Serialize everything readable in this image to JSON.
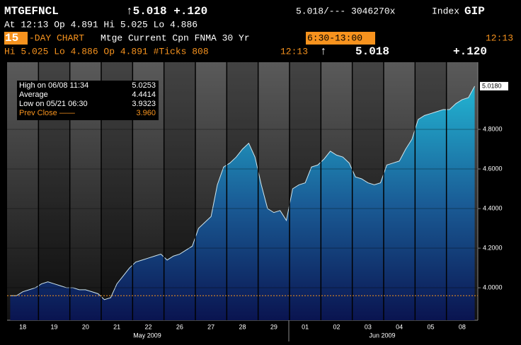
{
  "header": {
    "ticker": "MTGEFNCL",
    "change_head": "↑5.018 +.120",
    "quote": "5.018/--- 3046270x",
    "index_label": "Index",
    "source": "GIP",
    "line2": "At 12:13  Op 4.891 Hi 5.025 Lo 4.886",
    "days": "15",
    "chart_kind": "-DAY CHART",
    "description": "Mtge Current Cpn FNMA 30 Yr",
    "session": "6:30-13:00",
    "time_right": "12:13",
    "line4": "Hi  5.025 Lo  4.886 Op  4.891 #Ticks 808",
    "time4": "12:13",
    "arrow4": "↑",
    "last4": "5.018",
    "change4": "+.120"
  },
  "chart_data": {
    "type": "area",
    "color": "#1aa6c6",
    "categories": [
      null,
      null,
      "18",
      null,
      null,
      null,
      null,
      "19",
      null,
      null,
      null,
      null,
      "20",
      null,
      null,
      null,
      null,
      "21",
      null,
      null,
      null,
      null,
      "22",
      null,
      null,
      null,
      null,
      "26",
      null,
      null,
      null,
      null,
      "27",
      null,
      null,
      null,
      null,
      "28",
      null,
      null,
      null,
      null,
      "29",
      null,
      null,
      null,
      null,
      "01",
      null,
      null,
      null,
      null,
      "02",
      null,
      null,
      null,
      null,
      "03",
      null,
      null,
      null,
      null,
      "04",
      null,
      null,
      null,
      null,
      "05",
      null,
      null,
      null,
      null,
      "08",
      null,
      null
    ],
    "values": [
      3.96,
      3.96,
      3.98,
      3.99,
      4.0,
      4.02,
      4.03,
      4.02,
      4.01,
      4.0,
      4.0,
      3.99,
      3.99,
      3.98,
      3.97,
      3.94,
      3.95,
      4.02,
      4.06,
      4.1,
      4.13,
      4.14,
      4.15,
      4.16,
      4.17,
      4.14,
      4.16,
      4.17,
      4.19,
      4.21,
      4.3,
      4.33,
      4.36,
      4.52,
      4.61,
      4.63,
      4.66,
      4.7,
      4.73,
      4.66,
      4.52,
      4.4,
      4.38,
      4.39,
      4.34,
      4.5,
      4.52,
      4.53,
      4.61,
      4.62,
      4.65,
      4.69,
      4.67,
      4.66,
      4.63,
      4.56,
      4.55,
      4.53,
      4.52,
      4.53,
      4.62,
      4.63,
      4.64,
      4.7,
      4.75,
      4.85,
      4.87,
      4.88,
      4.89,
      4.9,
      4.9,
      4.93,
      4.95,
      4.96,
      5.018
    ],
    "months": [
      "May 2009",
      "Jun 2009"
    ],
    "ylim": [
      3.836,
      5.139
    ],
    "yticks": [
      {
        "value": 4.0,
        "label": "4.0000"
      },
      {
        "value": 4.2,
        "label": "4.2000"
      },
      {
        "value": 4.4,
        "label": "4.4000"
      },
      {
        "value": 4.6,
        "label": "4.6000"
      },
      {
        "value": 4.8,
        "label": "4.8000"
      }
    ],
    "last_price": {
      "value": 5.018,
      "label": "5.0180"
    },
    "prev_close": 3.96,
    "stats": [
      [
        "High on 06/08 11:34",
        "5.0253"
      ],
      [
        "Average",
        "4.4414"
      ],
      [
        "Low on 05/21 06:30",
        "3.9323"
      ],
      [
        "Prev Close ——",
        "3.960"
      ]
    ]
  }
}
